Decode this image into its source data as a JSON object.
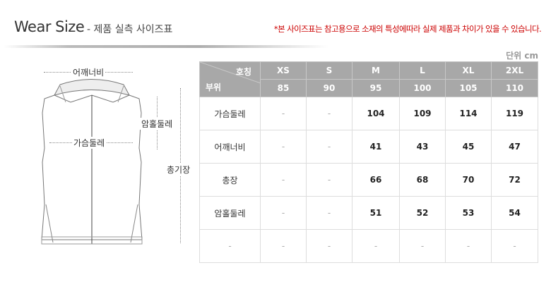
{
  "header": {
    "title": "Wear Size",
    "subtitle": "- 제품 실측 사이즈표",
    "notice": "*본 사이즈표는 참고용으로 소재의 특성에따라 실제 제품과 차이가 있을 수 있습니다.",
    "unit": "단위 cm"
  },
  "diagram": {
    "shoulder": "어깨너비",
    "chest": "가슴둘레",
    "armhole": "암홀둘레",
    "length": "총기장"
  },
  "table": {
    "corner_top": "호칭",
    "corner_bottom": "부위",
    "sizes": [
      "XS",
      "S",
      "M",
      "L",
      "XL",
      "2XL"
    ],
    "numbers": [
      "85",
      "90",
      "95",
      "100",
      "105",
      "110"
    ],
    "rows": [
      {
        "label": "가슴둘레",
        "values": [
          "-",
          "-",
          "104",
          "109",
          "114",
          "119"
        ]
      },
      {
        "label": "어깨너비",
        "values": [
          "-",
          "-",
          "41",
          "43",
          "45",
          "47"
        ]
      },
      {
        "label": "총장",
        "values": [
          "-",
          "-",
          "66",
          "68",
          "70",
          "72"
        ]
      },
      {
        "label": "암홀둘레",
        "values": [
          "-",
          "-",
          "51",
          "52",
          "53",
          "54"
        ]
      },
      {
        "label": "-",
        "values": [
          "-",
          "-",
          "-",
          "-",
          "-",
          "-"
        ]
      }
    ]
  },
  "colors": {
    "header_bg": "#a8a8a8",
    "notice": "#cc0000"
  }
}
